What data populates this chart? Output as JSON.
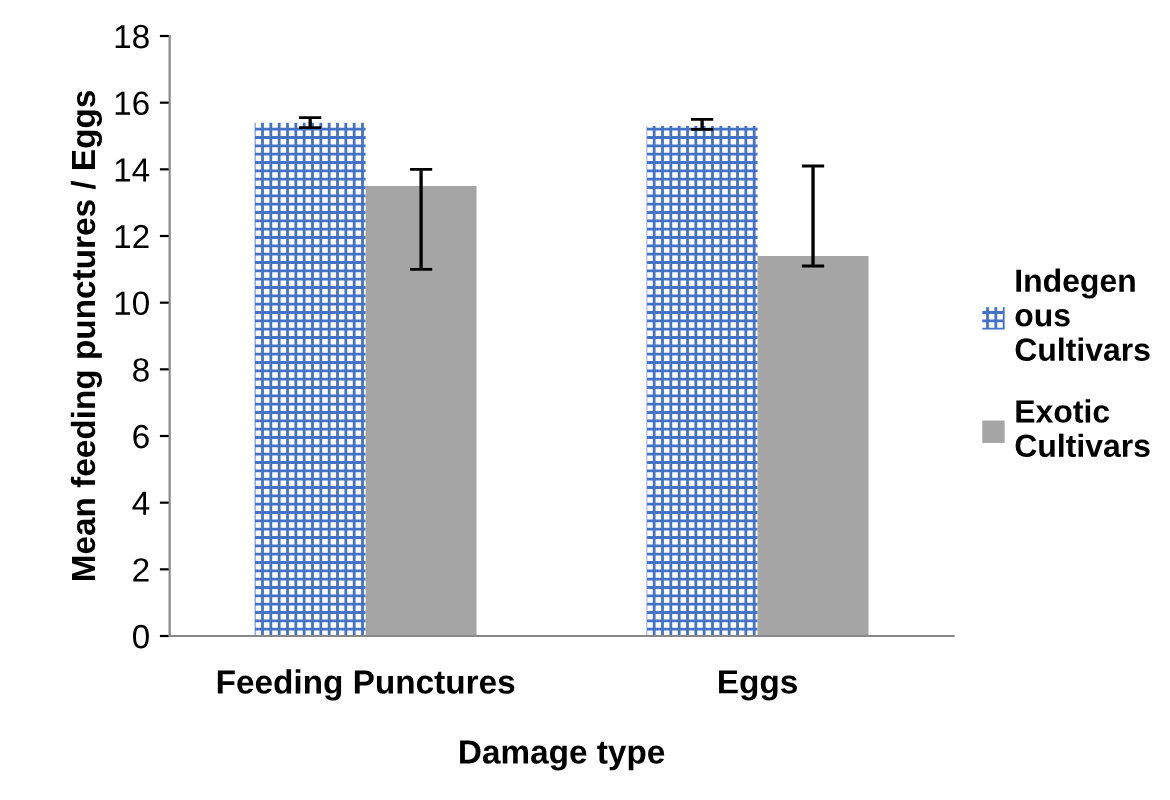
{
  "chart_data": {
    "type": "bar",
    "xlabel": "Damage type",
    "ylabel": "Mean feeding punctures / Eggs",
    "categories": [
      "Feeding Punctures",
      "Eggs"
    ],
    "series": [
      {
        "name": "Indegen\nous\nCultivars",
        "color": "#4472c4",
        "values": [
          15.4,
          15.3
        ],
        "errors": [
          [
            15.25,
            15.55
          ],
          [
            15.2,
            15.5
          ]
        ]
      },
      {
        "name": "Exotic\nCultivars",
        "color": "#a5a5a5",
        "values": [
          13.5,
          11.4
        ],
        "errors": [
          [
            11.0,
            14.0
          ],
          [
            11.1,
            14.1
          ]
        ]
      }
    ],
    "ylim": [
      0,
      18
    ],
    "yticks": [
      0,
      2,
      4,
      6,
      8,
      10,
      12,
      14,
      16,
      18
    ],
    "grid": false,
    "legend": "right"
  }
}
